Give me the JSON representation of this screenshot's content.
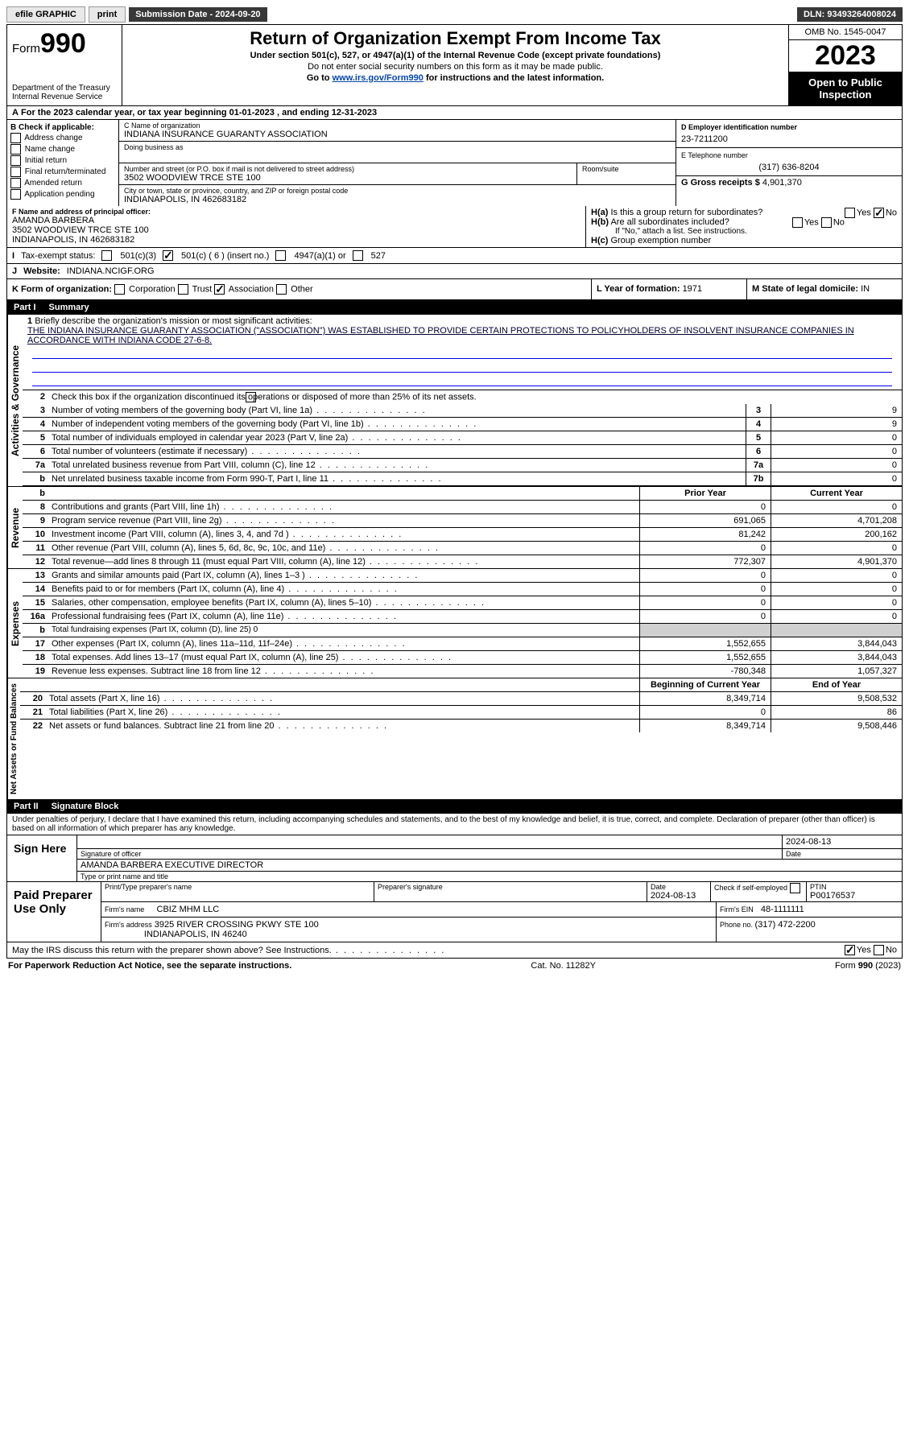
{
  "topbar": {
    "efile": "efile GRAPHIC",
    "print": "print",
    "subdate_label": "Submission Date - ",
    "subdate": "2024-09-20",
    "dln_label": "DLN: ",
    "dln": "93493264008024"
  },
  "header": {
    "form": "Form",
    "num": "990",
    "dept": "Department of the Treasury",
    "irs": "Internal Revenue Service",
    "title": "Return of Organization Exempt From Income Tax",
    "sub1": "Under section 501(c), 527, or 4947(a)(1) of the Internal Revenue Code (except private foundations)",
    "sub2": "Do not enter social security numbers on this form as it may be made public.",
    "sub3": "Go to ",
    "link": "www.irs.gov/Form990",
    "sub3b": " for instructions and the latest information.",
    "omb": "OMB No. 1545-0047",
    "year": "2023",
    "inspect": "Open to Public Inspection"
  },
  "A": {
    "text": "For the 2023 calendar year, or tax year beginning ",
    "d1": "01-01-2023",
    "mid": " , and ending ",
    "d2": "12-31-2023"
  },
  "B": {
    "title": "B Check if applicable:",
    "items": [
      "Address change",
      "Name change",
      "Initial return",
      "Final return/terminated",
      "Amended return",
      "Application pending"
    ]
  },
  "C": {
    "namelbl": "C Name of organization",
    "name": "INDIANA INSURANCE GUARANTY ASSOCIATION",
    "dba": "Doing business as",
    "streetlbl": "Number and street (or P.O. box if mail is not delivered to street address)",
    "street": "3502 WOODVIEW TRCE STE 100",
    "roomlbl": "Room/suite",
    "citylbl": "City or town, state or province, country, and ZIP or foreign postal code",
    "city": "INDIANAPOLIS, IN  462683182"
  },
  "D": {
    "lbl": "D Employer identification number",
    "val": "23-7211200"
  },
  "E": {
    "lbl": "E Telephone number",
    "val": "(317) 636-8204"
  },
  "G": {
    "lbl": "G Gross receipts $ ",
    "val": "4,901,370"
  },
  "F": {
    "lbl": "F  Name and address of principal officer:",
    "name": "AMANDA BARBERA",
    "l2": "3502 WOODVIEW TRCE STE 100",
    "l3": "INDIANAPOLIS, IN  462683182"
  },
  "H": {
    "a": "Is this a group return for subordinates?",
    "b": "Are all subordinates included?",
    "bnote": "If \"No,\" attach a list. See instructions.",
    "c": "Group exemption number",
    "ha_no": true
  },
  "I": {
    "lbl": "Tax-exempt status:",
    "c1": "501(c)(3)",
    "c2": "501(c) ( 6 ) (insert no.)",
    "c3": "4947(a)(1) or",
    "c4": "527",
    "c2on": true
  },
  "J": {
    "lbl": "Website:",
    "val": "INDIANA.NCIGF.ORG"
  },
  "K": {
    "lbl": "K Form of organization:",
    "o1": "Corporation",
    "o2": "Trust",
    "o3": "Association",
    "o4": "Other",
    "on": "Association"
  },
  "L": {
    "lbl": "L Year of formation: ",
    "val": "1971"
  },
  "M": {
    "lbl": "M State of legal domicile: ",
    "val": "IN"
  },
  "part1": {
    "num": "Part I",
    "title": "Summary"
  },
  "summary": {
    "q1": "Briefly describe the organization's mission or most significant activities:",
    "mission": "THE INDIANA INSURANCE GUARANTY ASSOCIATION (\"ASSOCIATION\") WAS ESTABLISHED TO PROVIDE CERTAIN PROTECTIONS TO POLICYHOLDERS OF INSOLVENT INSURANCE COMPANIES IN ACCORDANCE WITH INDIANA CODE 27-6-8.",
    "q2": "Check this box      if the organization discontinued its operations or disposed of more than 25% of its net assets.",
    "lines": [
      {
        "n": "3",
        "t": "Number of voting members of the governing body (Part VI, line 1a)",
        "c": "3",
        "v": "9"
      },
      {
        "n": "4",
        "t": "Number of independent voting members of the governing body (Part VI, line 1b)",
        "c": "4",
        "v": "9"
      },
      {
        "n": "5",
        "t": "Total number of individuals employed in calendar year 2023 (Part V, line 2a)",
        "c": "5",
        "v": "0"
      },
      {
        "n": "6",
        "t": "Total number of volunteers (estimate if necessary)",
        "c": "6",
        "v": "0"
      },
      {
        "n": "7a",
        "t": "Total unrelated business revenue from Part VIII, column (C), line 12",
        "c": "7a",
        "v": "0"
      },
      {
        "n": "b",
        "t": "Net unrelated business taxable income from Form 990-T, Part I, line 11",
        "c": "7b",
        "v": "0"
      }
    ],
    "colhdr": {
      "py": "Prior Year",
      "cy": "Current Year"
    },
    "rev": [
      {
        "n": "8",
        "t": "Contributions and grants (Part VIII, line 1h)",
        "p": "0",
        "c": "0"
      },
      {
        "n": "9",
        "t": "Program service revenue (Part VIII, line 2g)",
        "p": "691,065",
        "c": "4,701,208"
      },
      {
        "n": "10",
        "t": "Investment income (Part VIII, column (A), lines 3, 4, and 7d )",
        "p": "81,242",
        "c": "200,162"
      },
      {
        "n": "11",
        "t": "Other revenue (Part VIII, column (A), lines 5, 6d, 8c, 9c, 10c, and 11e)",
        "p": "0",
        "c": "0"
      },
      {
        "n": "12",
        "t": "Total revenue—add lines 8 through 11 (must equal Part VIII, column (A), line 12)",
        "p": "772,307",
        "c": "4,901,370"
      }
    ],
    "exp": [
      {
        "n": "13",
        "t": "Grants and similar amounts paid (Part IX, column (A), lines 1–3 )",
        "p": "0",
        "c": "0"
      },
      {
        "n": "14",
        "t": "Benefits paid to or for members (Part IX, column (A), line 4)",
        "p": "0",
        "c": "0"
      },
      {
        "n": "15",
        "t": "Salaries, other compensation, employee benefits (Part IX, column (A), lines 5–10)",
        "p": "0",
        "c": "0"
      },
      {
        "n": "16a",
        "t": "Professional fundraising fees (Part IX, column (A), line 11e)",
        "p": "0",
        "c": "0"
      },
      {
        "n": "b",
        "t": "Total fundraising expenses (Part IX, column (D), line 25) 0",
        "shade": true
      },
      {
        "n": "17",
        "t": "Other expenses (Part IX, column (A), lines 11a–11d, 11f–24e)",
        "p": "1,552,655",
        "c": "3,844,043"
      },
      {
        "n": "18",
        "t": "Total expenses. Add lines 13–17 (must equal Part IX, column (A), line 25)",
        "p": "1,552,655",
        "c": "3,844,043"
      },
      {
        "n": "19",
        "t": "Revenue less expenses. Subtract line 18 from line 12",
        "p": "-780,348",
        "c": "1,057,327"
      }
    ],
    "nethdr": {
      "py": "Beginning of Current Year",
      "cy": "End of Year"
    },
    "net": [
      {
        "n": "20",
        "t": "Total assets (Part X, line 16)",
        "p": "8,349,714",
        "c": "9,508,532"
      },
      {
        "n": "21",
        "t": "Total liabilities (Part X, line 26)",
        "p": "0",
        "c": "86"
      },
      {
        "n": "22",
        "t": "Net assets or fund balances. Subtract line 21 from line 20",
        "p": "8,349,714",
        "c": "9,508,446"
      }
    ],
    "sections": {
      "ag": "Activities & Governance",
      "rev": "Revenue",
      "exp": "Expenses",
      "net": "Net Assets or Fund Balances"
    }
  },
  "part2": {
    "num": "Part II",
    "title": "Signature Block",
    "decl": "Under penalties of perjury, I declare that I have examined this return, including accompanying schedules and statements, and to the best of my knowledge and belief, it is true, correct, and complete. Declaration of preparer (other than officer) is based on all information of which preparer has any knowledge."
  },
  "sign": {
    "here": "Sign Here",
    "siglbl": "Signature of officer",
    "datelbl": "Date",
    "date": "2024-08-13",
    "name": "AMANDA BARBERA  EXECUTIVE DIRECTOR",
    "namelbl": "Type or print name and title"
  },
  "paid": {
    "lbl": "Paid Preparer Use Only",
    "pnamelbl": "Print/Type preparer's name",
    "psiglbl": "Preparer's signature",
    "pdatelbl": "Date",
    "pdate": "2024-08-13",
    "cklbl": "Check        if self-employed",
    "ptinlbl": "PTIN",
    "ptin": "P00176537",
    "firmlbl": "Firm's name",
    "firm": "CBIZ MHM LLC",
    "einlbl": "Firm's EIN",
    "ein": "48-1111111",
    "addrlbl": "Firm's address",
    "addr1": "3925 RIVER CROSSING PKWY STE 100",
    "addr2": "INDIANAPOLIS, IN  46240",
    "phonelbl": "Phone no. ",
    "phone": "(317) 472-2200"
  },
  "discuss": {
    "q": "May the IRS discuss this return with the preparer shown above? See Instructions.",
    "yes": true
  },
  "footer": {
    "l": "For Paperwork Reduction Act Notice, see the separate instructions.",
    "c": "Cat. No. 11282Y",
    "r": "Form 990 (2023)"
  }
}
